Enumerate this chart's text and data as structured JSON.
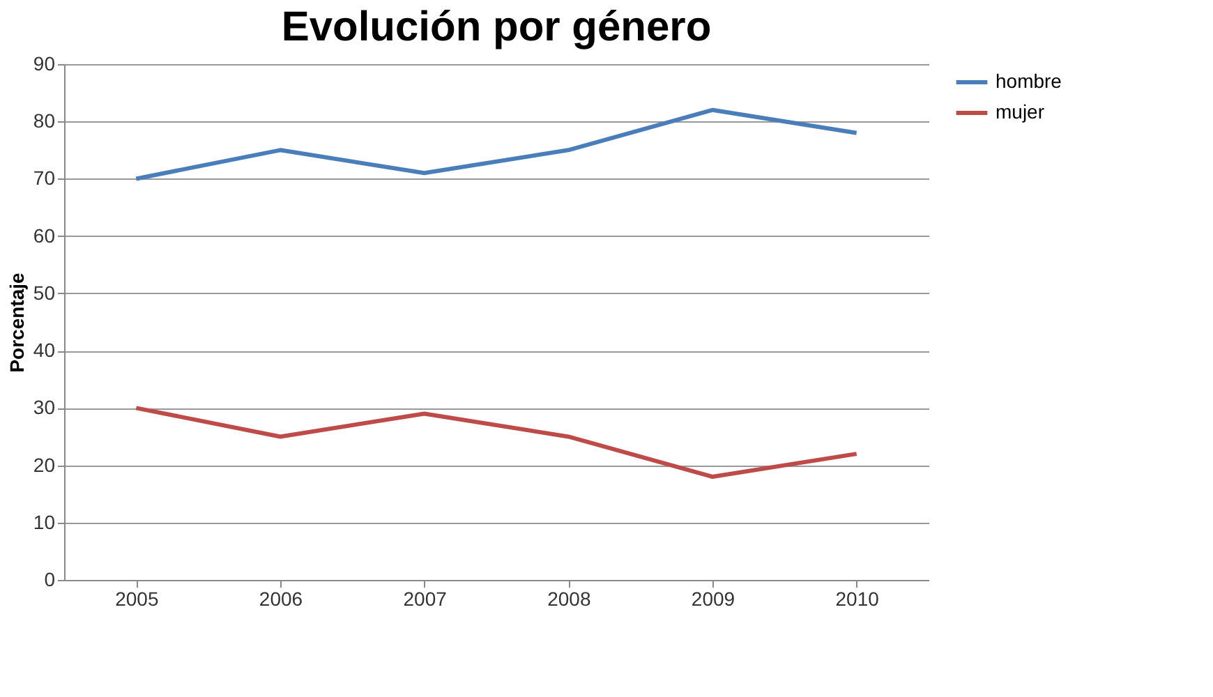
{
  "chart_data": {
    "type": "line",
    "title": "Evolución por género",
    "ylabel": "Porcentaje",
    "categories": [
      "2005",
      "2006",
      "2007",
      "2008",
      "2009",
      "2010"
    ],
    "series": [
      {
        "name": "hombre",
        "color": "#4a7ebb",
        "values": [
          70,
          75,
          71,
          75,
          82,
          78
        ]
      },
      {
        "name": "mujer",
        "color": "#be4b48",
        "values": [
          30,
          25,
          29,
          25,
          18,
          22
        ]
      }
    ],
    "ylim": [
      0,
      90
    ],
    "yticks": [
      0,
      10,
      20,
      30,
      40,
      50,
      60,
      70,
      80,
      90
    ],
    "grid": "y",
    "legend": "right",
    "marker": "none",
    "line_style": "solid"
  }
}
